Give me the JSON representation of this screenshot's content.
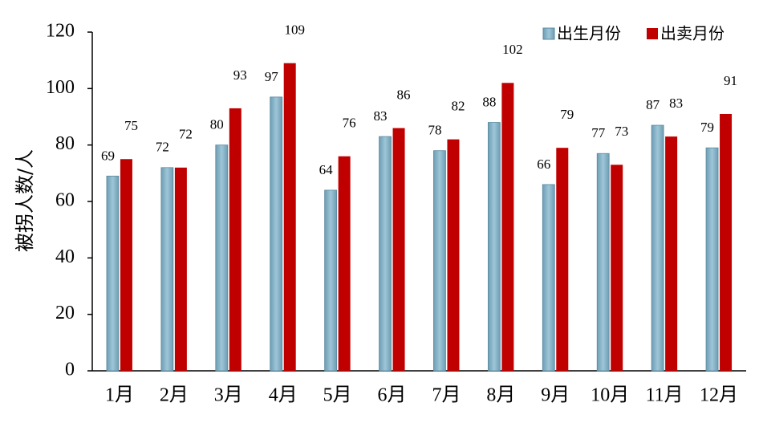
{
  "chart_data": {
    "type": "bar",
    "y_label": "被拐人数/人",
    "categories": [
      "1月",
      "2月",
      "3月",
      "4月",
      "5月",
      "6月",
      "7月",
      "8月",
      "9月",
      "10月",
      "11月",
      "12月"
    ],
    "series": [
      {
        "name": "出生月份",
        "color": "#9ec6d8",
        "values": [
          69,
          72,
          80,
          97,
          64,
          83,
          78,
          88,
          66,
          77,
          87,
          79
        ]
      },
      {
        "name": "出卖月份",
        "color": "#c00000",
        "values": [
          75,
          72,
          93,
          109,
          76,
          86,
          82,
          102,
          79,
          73,
          83,
          91
        ]
      }
    ],
    "ylim": [
      0,
      120
    ],
    "yticks": [
      0,
      20,
      40,
      60,
      80,
      100,
      120
    ],
    "grid": false,
    "legend": "top-right"
  }
}
